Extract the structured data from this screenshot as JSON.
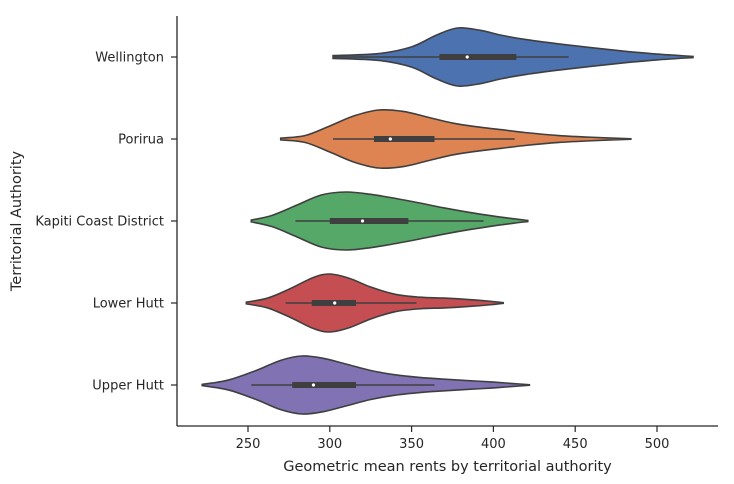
{
  "chart_data": {
    "type": "violin",
    "orientation": "horizontal",
    "xlabel": "Geometric mean rents by territorial authority",
    "ylabel": "Territorial Authority",
    "x_ticks": [
      250,
      300,
      350,
      400,
      450,
      500
    ],
    "xlim": [
      210,
      535
    ],
    "grid": false,
    "categories": [
      "Wellington",
      "Porirua",
      "Kapiti Coast District",
      "Lower Hutt",
      "Upper Hutt"
    ],
    "colors": [
      "#4c72b0",
      "#dd8452",
      "#55a868",
      "#c44e52",
      "#8172b3"
    ],
    "series": [
      {
        "name": "Wellington",
        "min": 302,
        "q1": 367,
        "median": 384,
        "q3": 414,
        "max": 446,
        "kde_min": 302,
        "kde_max": 522,
        "density": [
          [
            302,
            0.05
          ],
          [
            330,
            0.12
          ],
          [
            350,
            0.35
          ],
          [
            365,
            0.75
          ],
          [
            378,
            1.0
          ],
          [
            392,
            0.92
          ],
          [
            405,
            0.75
          ],
          [
            420,
            0.6
          ],
          [
            440,
            0.45
          ],
          [
            460,
            0.32
          ],
          [
            480,
            0.2
          ],
          [
            500,
            0.1
          ],
          [
            522,
            0.02
          ]
        ]
      },
      {
        "name": "Porirua",
        "min": 302,
        "q1": 327,
        "median": 337,
        "q3": 364,
        "max": 413,
        "kde_min": 270,
        "kde_max": 484,
        "density": [
          [
            270,
            0.03
          ],
          [
            285,
            0.12
          ],
          [
            300,
            0.45
          ],
          [
            315,
            0.8
          ],
          [
            330,
            1.0
          ],
          [
            345,
            0.95
          ],
          [
            360,
            0.75
          ],
          [
            375,
            0.55
          ],
          [
            390,
            0.42
          ],
          [
            405,
            0.32
          ],
          [
            420,
            0.22
          ],
          [
            440,
            0.12
          ],
          [
            460,
            0.06
          ],
          [
            484,
            0.01
          ]
        ]
      },
      {
        "name": "Kapiti Coast District",
        "min": 279,
        "q1": 300,
        "median": 320,
        "q3": 348,
        "max": 394,
        "kde_min": 252,
        "kde_max": 421,
        "density": [
          [
            252,
            0.03
          ],
          [
            265,
            0.2
          ],
          [
            280,
            0.55
          ],
          [
            295,
            0.9
          ],
          [
            310,
            1.0
          ],
          [
            325,
            0.92
          ],
          [
            340,
            0.78
          ],
          [
            355,
            0.62
          ],
          [
            370,
            0.45
          ],
          [
            385,
            0.3
          ],
          [
            400,
            0.17
          ],
          [
            412,
            0.08
          ],
          [
            421,
            0.02
          ]
        ]
      },
      {
        "name": "Lower Hutt",
        "min": 273,
        "q1": 289,
        "median": 303,
        "q3": 316,
        "max": 353,
        "kde_min": 249,
        "kde_max": 406,
        "density": [
          [
            249,
            0.03
          ],
          [
            262,
            0.17
          ],
          [
            276,
            0.5
          ],
          [
            290,
            0.88
          ],
          [
            300,
            1.0
          ],
          [
            312,
            0.85
          ],
          [
            325,
            0.55
          ],
          [
            340,
            0.3
          ],
          [
            355,
            0.2
          ],
          [
            370,
            0.17
          ],
          [
            385,
            0.12
          ],
          [
            398,
            0.06
          ],
          [
            406,
            0.01
          ]
        ]
      },
      {
        "name": "Upper Hutt",
        "min": 252,
        "q1": 277,
        "median": 290,
        "q3": 316,
        "max": 364,
        "kde_min": 222,
        "kde_max": 422,
        "density": [
          [
            222,
            0.02
          ],
          [
            238,
            0.17
          ],
          [
            255,
            0.5
          ],
          [
            270,
            0.85
          ],
          [
            283,
            1.0
          ],
          [
            296,
            0.92
          ],
          [
            310,
            0.72
          ],
          [
            325,
            0.5
          ],
          [
            340,
            0.35
          ],
          [
            355,
            0.26
          ],
          [
            370,
            0.2
          ],
          [
            385,
            0.15
          ],
          [
            400,
            0.1
          ],
          [
            412,
            0.05
          ],
          [
            422,
            0.01
          ]
        ]
      }
    ]
  }
}
